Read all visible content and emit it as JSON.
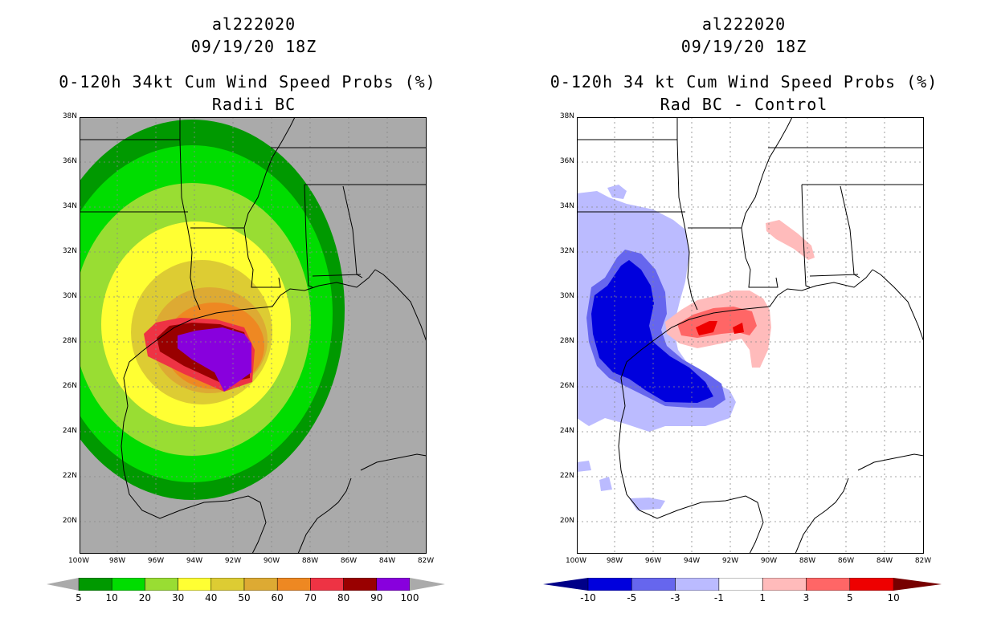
{
  "left_panel": {
    "title": [
      "al222020",
      "09/19/20 18Z",
      "0-120h 34kt Cum Wind Speed Probs (%)",
      "Radii BC"
    ],
    "lat_labels": [
      "38N",
      "36N",
      "34N",
      "32N",
      "30N",
      "28N",
      "26N",
      "24N",
      "22N",
      "20N"
    ],
    "lon_labels": [
      "100W",
      "98W",
      "96W",
      "94W",
      "92W",
      "90W",
      "88W",
      "86W",
      "84W",
      "82W"
    ],
    "colorbar": {
      "colors": [
        "#009900",
        "#00dd00",
        "#99dd33",
        "#ffff33",
        "#ddcc33",
        "#ddaa33",
        "#ee8822",
        "#ee3344",
        "#990000",
        "#8800dd"
      ],
      "ticks": [
        "5",
        "10",
        "20",
        "30",
        "40",
        "50",
        "60",
        "70",
        "80",
        "90",
        "100"
      ]
    },
    "background_color": "#aaaaaa"
  },
  "right_panel": {
    "title": [
      "al222020",
      "09/19/20 18Z",
      "0-120h 34 kt Cum Wind Speed Probs (%)",
      "Rad BC - Control"
    ],
    "lat_labels": [
      "38N",
      "36N",
      "34N",
      "32N",
      "30N",
      "28N",
      "26N",
      "24N",
      "22N",
      "20N"
    ],
    "lon_labels": [
      "100W",
      "98W",
      "96W",
      "94W",
      "92W",
      "90W",
      "88W",
      "86W",
      "84W",
      "82W"
    ],
    "colorbar": {
      "colors": [
        "#0000dd",
        "#6666ee",
        "#bbbbff",
        "#ffffff",
        "#ffbbbb",
        "#ff6666",
        "#ee0000"
      ],
      "end_colors": [
        "#000088",
        "#770000"
      ],
      "ticks": [
        "-10",
        "-5",
        "-3",
        "-1",
        "1",
        "3",
        "5",
        "10"
      ]
    }
  }
}
